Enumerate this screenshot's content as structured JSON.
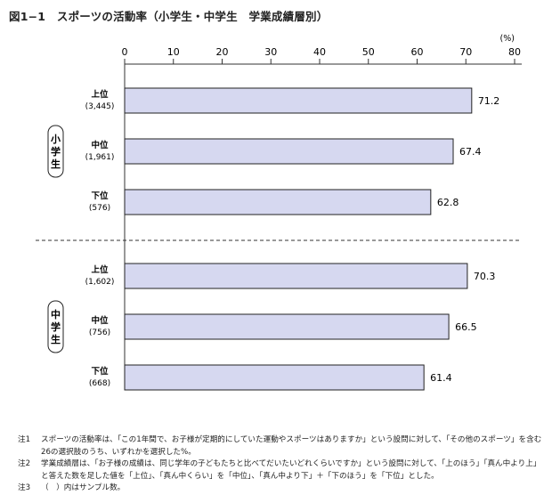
{
  "title": "図1−1　スポーツの活動率（小学生・中学生　学業成績層別）",
  "chart_data": {
    "type": "bar",
    "orientation": "horizontal",
    "unit_label": "(%)",
    "xlim": [
      0,
      80
    ],
    "ticks": [
      0,
      10,
      20,
      30,
      40,
      50,
      60,
      70,
      80
    ],
    "bar_color": "#d6d8f0",
    "groups": [
      {
        "label": "小学生",
        "bars": [
          {
            "label": "上位",
            "n": "(3,445)",
            "value": 71.2,
            "value_label": "71.2"
          },
          {
            "label": "中位",
            "n": "(1,961)",
            "value": 67.4,
            "value_label": "67.4"
          },
          {
            "label": "下位",
            "n": "(576)",
            "value": 62.8,
            "value_label": "62.8"
          }
        ]
      },
      {
        "label": "中学生",
        "bars": [
          {
            "label": "上位",
            "n": "(1,602)",
            "value": 70.3,
            "value_label": "70.3"
          },
          {
            "label": "中位",
            "n": "(756)",
            "value": 66.5,
            "value_label": "66.5"
          },
          {
            "label": "下位",
            "n": "(668)",
            "value": 61.4,
            "value_label": "61.4"
          }
        ]
      }
    ]
  },
  "notes": [
    {
      "label": "注1",
      "text": "スポーツの活動率は、「この1年間で、お子様が定期的にしていた運動やスポーツはありますか」という設問に対して、「その他のスポーツ」を含む26の選択肢のうち、いずれかを選択した%。"
    },
    {
      "label": "注2",
      "text": "学業成績層は、「お子様の成績は、同じ学年の子どもたちと比べてだいたいどれくらいですか」という設問に対して、「上のほう」「真ん中より上」と答えた数を足した値を「上位」、「真ん中くらい」を「中位」、「真ん中より下」＋「下のほう」を「下位」とした。"
    },
    {
      "label": "注3",
      "text": "（　）内はサンプル数。"
    }
  ]
}
